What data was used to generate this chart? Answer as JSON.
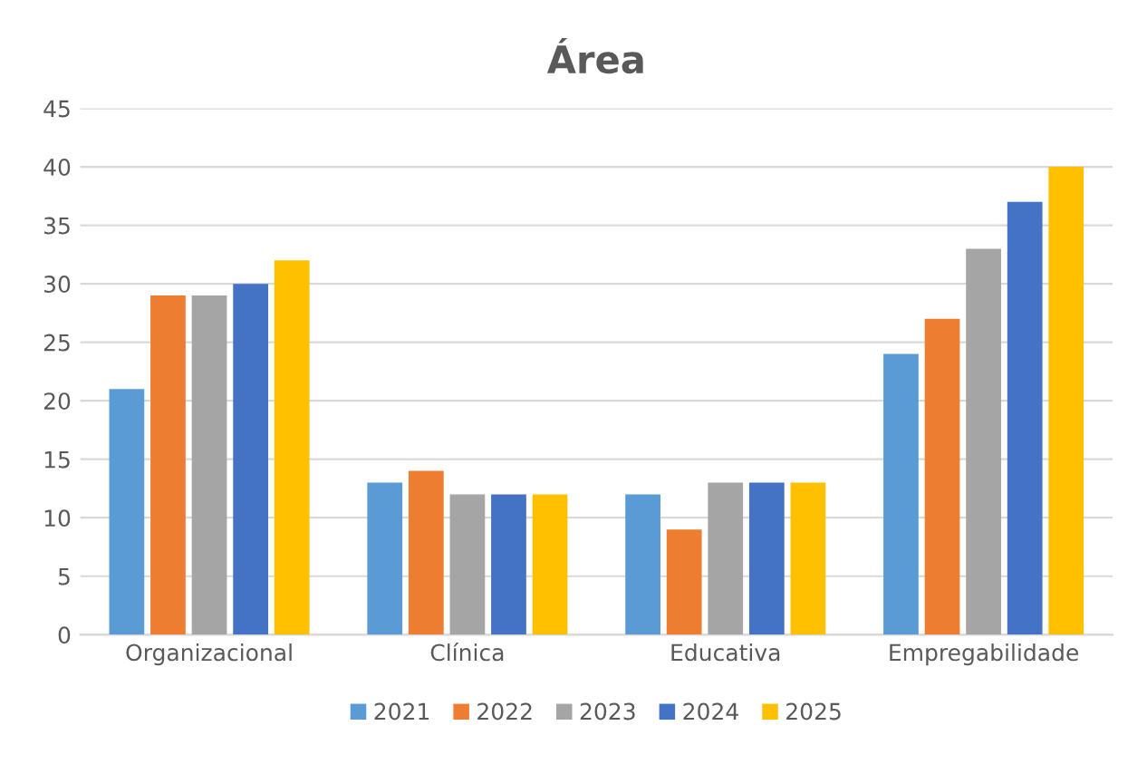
{
  "chart_data": {
    "type": "bar",
    "title": "Área",
    "categories": [
      "Organizacional",
      "Clínica",
      "Educativa",
      "Empregabilidade"
    ],
    "series": [
      {
        "name": "2021",
        "color": "#5b9bd5",
        "values": [
          21,
          13,
          12,
          24
        ]
      },
      {
        "name": "2022",
        "color": "#ed7d31",
        "values": [
          29,
          14,
          9,
          27
        ]
      },
      {
        "name": "2023",
        "color": "#a5a5a5",
        "values": [
          29,
          12,
          13,
          33
        ]
      },
      {
        "name": "2024",
        "color": "#4472c4",
        "values": [
          30,
          12,
          13,
          37
        ]
      },
      {
        "name": "2025",
        "color": "#ffc000",
        "values": [
          32,
          12,
          13,
          40
        ]
      }
    ],
    "ylim": [
      0,
      45
    ],
    "yticks": [
      0,
      5,
      10,
      15,
      20,
      25,
      30,
      35,
      40,
      45
    ],
    "grid": "y",
    "legend": "bottom"
  }
}
